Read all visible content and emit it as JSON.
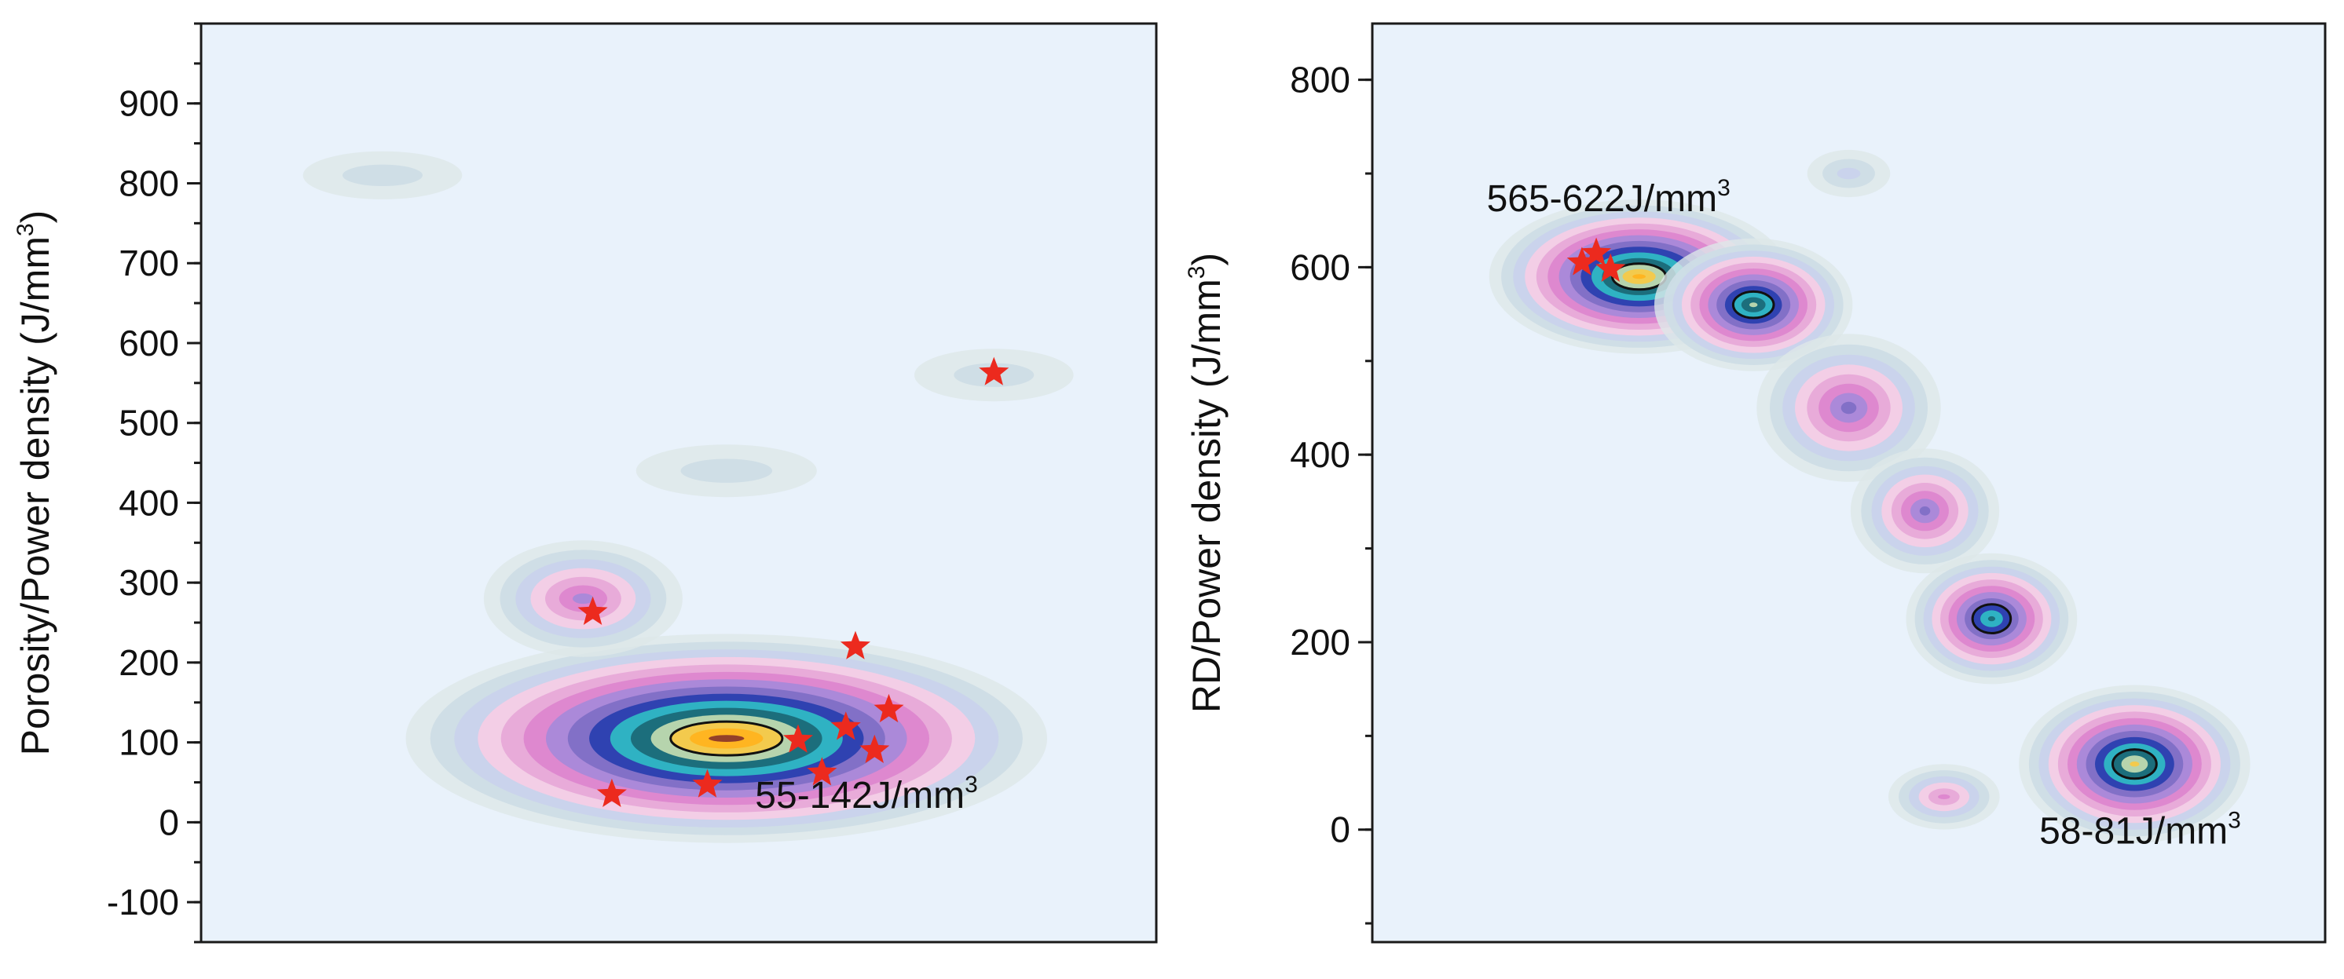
{
  "colors": {
    "background": "#e9f2fb",
    "axis": "#1a1a1a",
    "star": "#ec2a1e",
    "contour_line": "#111111",
    "contour_palette": [
      "#dde7e8",
      "#cddde6",
      "#c9d2ec",
      "#f4cde6",
      "#e7a9d8",
      "#dd86cf",
      "#a889d9",
      "#7f6fc6",
      "#2a3fb0",
      "#2fb8c4",
      "#1b6a78",
      "#bfd9b0",
      "#f7c948",
      "#ffb31f",
      "#8e3a2a"
    ]
  },
  "chart_data": [
    {
      "type": "contour",
      "ylabel": "Porosity/Power density (J/mm³)",
      "ylabel_text": "Porosity/Power density (J/mm",
      "ylabel_sup": "3",
      "ylabel_close": ")",
      "ylim": [
        -150,
        1000
      ],
      "yticks": [
        -100,
        0,
        100,
        200,
        300,
        400,
        500,
        600,
        700,
        800,
        900
      ],
      "ytick_labels": [
        "-100",
        "0",
        "100",
        "200",
        "300",
        "400",
        "500",
        "600",
        "700",
        "800",
        "900"
      ],
      "x_ticks_visible": false,
      "annotation": {
        "text": "55-142J/mm",
        "sup": "3",
        "x": 0.58,
        "y": 18
      },
      "stars": [
        {
          "x": 0.41,
          "y": 263
        },
        {
          "x": 0.43,
          "y": 35
        },
        {
          "x": 0.53,
          "y": 47
        },
        {
          "x": 0.625,
          "y": 103
        },
        {
          "x": 0.65,
          "y": 62
        },
        {
          "x": 0.675,
          "y": 119
        },
        {
          "x": 0.685,
          "y": 220
        },
        {
          "x": 0.705,
          "y": 90
        },
        {
          "x": 0.72,
          "y": 141
        },
        {
          "x": 0.83,
          "y": 563
        }
      ],
      "hotspots": [
        {
          "x": 0.55,
          "y": 105,
          "w": 0.43,
          "h": 100,
          "peak": 14,
          "rim": 2
        },
        {
          "x": 0.4,
          "y": 280,
          "w": 0.12,
          "h": 70,
          "peak": 6,
          "rim": 2
        },
        {
          "x": 0.19,
          "y": 810,
          "w": 0.14,
          "h": 45,
          "peak": 1,
          "rim": 1
        },
        {
          "x": 0.55,
          "y": 440,
          "w": 0.16,
          "h": 50,
          "peak": 1,
          "rim": 1
        },
        {
          "x": 0.83,
          "y": 560,
          "w": 0.14,
          "h": 50,
          "peak": 1,
          "rim": 1
        }
      ]
    },
    {
      "type": "contour",
      "ylabel": "RD/Power density (J/mm³)",
      "ylabel_text": "RD/Power density (J/mm",
      "ylabel_sup": "3",
      "ylabel_close": ")",
      "ylim": [
        -120,
        860
      ],
      "yticks": [
        0,
        200,
        400,
        600,
        800
      ],
      "ytick_labels": [
        "0",
        "200",
        "400",
        "600",
        "800"
      ],
      "x_ticks_visible": false,
      "annotation_top": {
        "text": "565-622J/mm",
        "sup": "3",
        "x": 0.12,
        "y": 660
      },
      "annotation_bottom": {
        "text": "58-81J/mm",
        "sup": "3",
        "x": 0.7,
        "y": -15
      },
      "stars": [
        {
          "x": 0.22,
          "y": 605
        },
        {
          "x": 0.235,
          "y": 615
        },
        {
          "x": 0.25,
          "y": 598
        }
      ],
      "hotspots": [
        {
          "x": 0.28,
          "y": 590,
          "w": 0.15,
          "h": 45,
          "peak": 13,
          "rim": 2
        },
        {
          "x": 0.4,
          "y": 560,
          "w": 0.08,
          "h": 40,
          "peak": 11,
          "rim": 2
        },
        {
          "x": 0.5,
          "y": 450,
          "w": 0.1,
          "h": 80,
          "peak": 7,
          "rim": 2
        },
        {
          "x": 0.58,
          "y": 340,
          "w": 0.07,
          "h": 60,
          "peak": 7,
          "rim": 2
        },
        {
          "x": 0.65,
          "y": 225,
          "w": 0.065,
          "h": 45,
          "peak": 10,
          "rim": 2
        },
        {
          "x": 0.8,
          "y": 70,
          "w": 0.1,
          "h": 55,
          "peak": 12,
          "rim": 2
        },
        {
          "x": 0.6,
          "y": 35,
          "w": 0.06,
          "h": 25,
          "peak": 5,
          "rim": 1
        },
        {
          "x": 0.5,
          "y": 700,
          "w": 0.06,
          "h": 30,
          "peak": 2,
          "rim": 1
        }
      ]
    }
  ]
}
